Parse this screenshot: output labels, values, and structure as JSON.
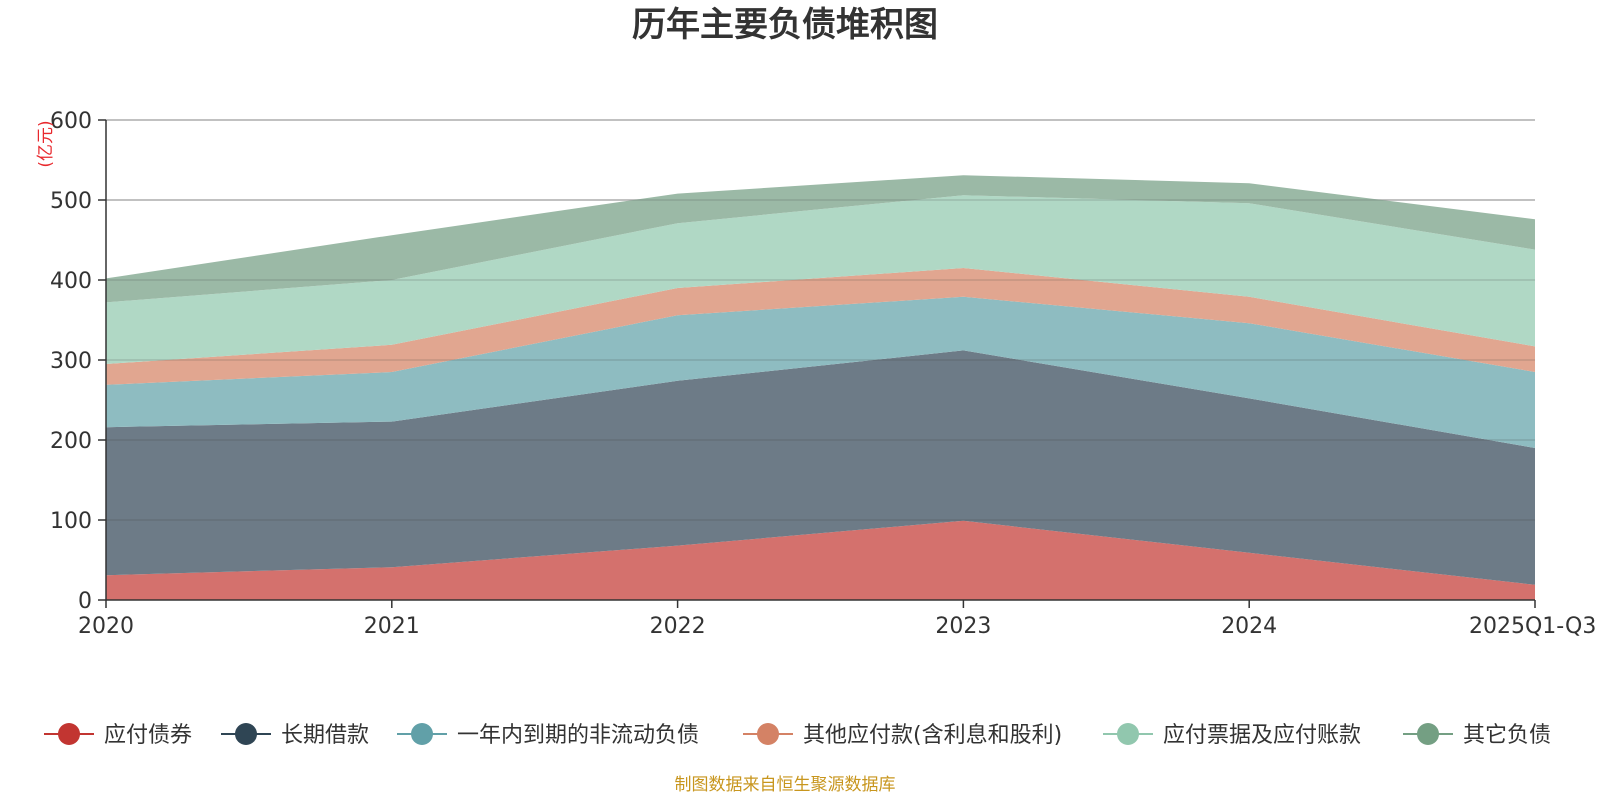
{
  "chart_data": {
    "type": "area",
    "stacked": true,
    "title": "历年主要负债堆积图",
    "unit_label": "(亿元)",
    "categories": [
      "2020",
      "2021",
      "2022",
      "2023",
      "2024",
      "2025Q1-Q3"
    ],
    "ylim": [
      0,
      600
    ],
    "yticks": [
      "0",
      "100",
      "200",
      "300",
      "400",
      "500",
      "600"
    ],
    "grid": true,
    "series": [
      {
        "name": "应付债券",
        "values": [
          31,
          41,
          68,
          99,
          59,
          19
        ]
      },
      {
        "name": "长期借款",
        "values": [
          185,
          182,
          206,
          213,
          193,
          171
        ]
      },
      {
        "name": "一年内到期的非流动负债",
        "values": [
          53,
          62,
          82,
          67,
          94,
          95
        ]
      },
      {
        "name": "其他应付款(含利息和股利)",
        "values": [
          26,
          34,
          34,
          36,
          33,
          32
        ]
      },
      {
        "name": "应付票据及应付账款",
        "values": [
          77,
          81,
          81,
          91,
          117,
          121
        ]
      },
      {
        "name": "其它负债",
        "values": [
          30,
          56,
          37,
          25,
          25,
          38
        ]
      }
    ],
    "legend_position": "bottom",
    "source_note": "制图数据来自恒生聚源数据库"
  },
  "colors": {
    "series_fill": [
      "#d4716d",
      "#6d7b87",
      "#8ebcc1",
      "#e1a690",
      "#b0d8c5",
      "#9bb9a6"
    ],
    "legend_marker": [
      "#c23531",
      "#2f4554",
      "#61a0a8",
      "#d48265",
      "#91c7ae",
      "#749f83"
    ]
  }
}
